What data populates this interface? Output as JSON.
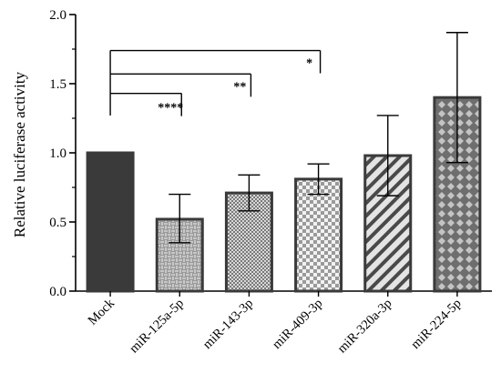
{
  "chart_data": {
    "type": "bar",
    "ylabel": "Relative luciferase activity",
    "ylim": [
      0,
      2.0
    ],
    "yticks": [
      "0.0",
      "0.5",
      "1.0",
      "1.5",
      "2.0"
    ],
    "categories": [
      "Mock",
      "miR-125a-5p",
      "miR-143-3p",
      "miR-409-3p",
      "miR-320a-3p",
      "miR-224-5p"
    ],
    "values": [
      1.0,
      0.52,
      0.71,
      0.81,
      0.98,
      1.4
    ],
    "error_bars": [
      null,
      {
        "low": 0.35,
        "high": 0.7
      },
      {
        "low": 0.58,
        "high": 0.84
      },
      {
        "low": 0.7,
        "high": 0.92
      },
      {
        "low": 0.69,
        "high": 1.27
      },
      {
        "low": 0.93,
        "high": 1.87
      }
    ],
    "bar_patterns": [
      "solid-dark",
      "weave",
      "fine-checker",
      "checker",
      "diagonal-stripes",
      "diamond"
    ],
    "significance": [
      {
        "from": "Mock",
        "to": "miR-125a-5p",
        "label": "****",
        "y": 1.43
      },
      {
        "from": "Mock",
        "to": "miR-143-3p",
        "label": "**",
        "y": 1.57
      },
      {
        "from": "Mock",
        "to": "miR-409-3p",
        "label": "*",
        "y": 1.74
      }
    ],
    "colors": {
      "bar_dark": "#3a3a3a",
      "bar_border": "#3a3a3a",
      "bar_light": "#d9d9d9"
    }
  }
}
